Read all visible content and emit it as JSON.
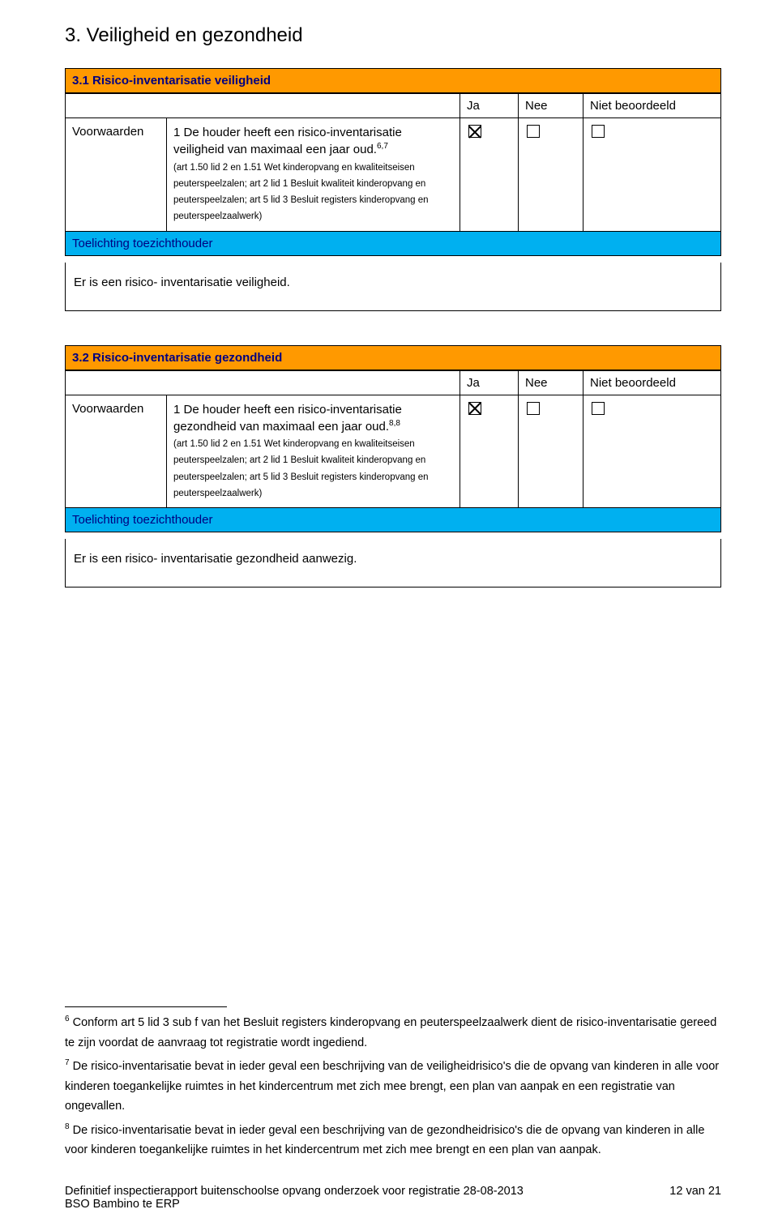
{
  "page": {
    "title": "3. Veiligheid en gezondheid",
    "number_label": "12 van 21",
    "footer_line1": "Definitief inspectierapport buitenschoolse opvang onderzoek voor registratie 28-08-2013",
    "footer_line2": "BSO Bambino te ERP"
  },
  "columns": {
    "ja": "Ja",
    "nee": "Nee",
    "niet": "Niet beoordeeld"
  },
  "labels": {
    "voorwaarden": "Voorwaarden",
    "toelichting": "Toelichting toezichthouder"
  },
  "sections": [
    {
      "title": "3.1 Risico-inventarisatie veiligheid",
      "item_main": "1 De houder heeft een risico-inventarisatie veiligheid van maximaal een jaar oud.",
      "item_sup": "6,7",
      "item_art": "(art 1.50 lid 2 en 1.51 Wet kinderopvang en kwaliteitseisen peuterspeelzalen; art 2 lid 1 Besluit kwaliteit kinderopvang en peuterspeelzalen; art 5 lid 3 Besluit registers kinderopvang en peuterspeelzaalwerk)",
      "ja_checked": true,
      "nee_checked": false,
      "niet_checked": false,
      "finding": "Er is een risico- inventarisatie veiligheid."
    },
    {
      "title": "3.2 Risico-inventarisatie gezondheid",
      "item_main": "1 De houder heeft een risico-inventarisatie gezondheid van maximaal een jaar oud.",
      "item_sup": "8,8",
      "item_art": "(art 1.50 lid 2 en 1.51 Wet kinderopvang en kwaliteitseisen peuterspeelzalen; art 2 lid 1 Besluit kwaliteit kinderopvang en peuterspeelzalen; art 5 lid 3 Besluit registers kinderopvang en peuterspeelzaalwerk)",
      "ja_checked": true,
      "nee_checked": false,
      "niet_checked": false,
      "finding": "Er is een risico- inventarisatie gezondheid aanwezig."
    }
  ],
  "footnotes": {
    "n6": "Conform art 5 lid 3 sub f van het Besluit registers kinderopvang en peuterspeelzaalwerk dient de risico-inventarisatie gereed te zijn voordat de aanvraag tot registratie wordt ingediend.",
    "n7": "De risico-inventarisatie bevat in ieder geval een beschrijving van de veiligheidrisico's die de opvang van kinderen in alle voor kinderen toegankelijke ruimtes in het kindercentrum met zich mee brengt, een plan van aanpak en een registratie van ongevallen.",
    "n8": "De risico-inventarisatie bevat in ieder geval een beschrijving van de gezondheidrisico's die de opvang van kinderen in alle voor kinderen toegankelijke ruimtes in het kindercentrum met zich mee brengt en een plan van aanpak."
  },
  "colors": {
    "section_bg": "#ff9900",
    "section_fg": "#000080",
    "toelichting_bg": "#00b0f0",
    "border": "#000000"
  }
}
